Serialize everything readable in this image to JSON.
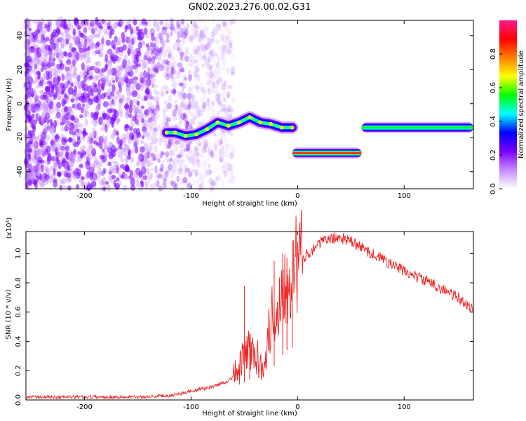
{
  "figure": {
    "title": "GN02.2023.276.00.02.G31"
  },
  "chart_data": [
    {
      "type": "heatmap",
      "xlabel": "Height of straight line (km)",
      "ylabel": "Frequency (Hz)",
      "xlim": [
        -255,
        165
      ],
      "ylim": [
        -50,
        49
      ],
      "xticks": [
        -200,
        -100,
        0,
        100
      ],
      "yticks": [
        -40,
        -20,
        0,
        20,
        40
      ],
      "colorbar": {
        "label": "Normalized spectral amplitude",
        "range": [
          0,
          1
        ],
        "ticks": [
          "0.0",
          "0.2",
          "0.4",
          "0.6",
          "0.8"
        ],
        "colormap": [
          "#ffffff",
          "#c58cff",
          "#7a00ff",
          "#0000ff",
          "#00ffff",
          "#00ff00",
          "#ffff00",
          "#ff8000",
          "#ff0000",
          "#ff1a8c"
        ]
      },
      "noise_region": {
        "x_range": [
          -255,
          -100
        ],
        "y_range": [
          -50,
          49
        ],
        "amplitude": 0.1
      },
      "ridge": [
        {
          "x": -123,
          "y": -17
        },
        {
          "x": -115,
          "y": -17
        },
        {
          "x": -105,
          "y": -19
        },
        {
          "x": -95,
          "y": -18
        },
        {
          "x": -85,
          "y": -15
        },
        {
          "x": -75,
          "y": -11
        },
        {
          "x": -65,
          "y": -13
        },
        {
          "x": -55,
          "y": -11
        },
        {
          "x": -45,
          "y": -8
        },
        {
          "x": -35,
          "y": -11
        },
        {
          "x": -25,
          "y": -12
        },
        {
          "x": -15,
          "y": -14
        },
        {
          "x": -5,
          "y": -14
        }
      ],
      "segments": [
        {
          "x0": -5,
          "x1": 60,
          "y": -29,
          "peak": "red"
        },
        {
          "x0": 60,
          "x1": 165,
          "y": -14,
          "peak": "green"
        }
      ]
    },
    {
      "type": "line",
      "xlabel": "Height of straight line (km)",
      "ylabel": "SNR (10 * v/v)",
      "yscale_label": "(x10⁴)",
      "xlim": [
        -255,
        165
      ],
      "ylim": [
        0,
        1.15
      ],
      "xticks": [
        -200,
        -100,
        0,
        100
      ],
      "yticks": [
        "0.0",
        "0.2",
        "0.4",
        "0.6",
        "0.8",
        "1.0"
      ],
      "color": "#ee2222",
      "envelope": [
        {
          "x": -255,
          "y": 0.02
        },
        {
          "x": -200,
          "y": 0.02
        },
        {
          "x": -150,
          "y": 0.02
        },
        {
          "x": -120,
          "y": 0.03
        },
        {
          "x": -100,
          "y": 0.06
        },
        {
          "x": -80,
          "y": 0.09
        },
        {
          "x": -65,
          "y": 0.13
        },
        {
          "x": -55,
          "y": 0.2
        },
        {
          "x": -50,
          "y": 0.3
        },
        {
          "x": -45,
          "y": 0.35
        },
        {
          "x": -40,
          "y": 0.3
        },
        {
          "x": -35,
          "y": 0.25
        },
        {
          "x": -30,
          "y": 0.3
        },
        {
          "x": -25,
          "y": 0.55
        },
        {
          "x": -20,
          "y": 0.6
        },
        {
          "x": -15,
          "y": 0.75
        },
        {
          "x": -10,
          "y": 0.85
        },
        {
          "x": 0,
          "y": 0.93
        },
        {
          "x": 10,
          "y": 1.0
        },
        {
          "x": 20,
          "y": 1.07
        },
        {
          "x": 30,
          "y": 1.1
        },
        {
          "x": 40,
          "y": 1.11
        },
        {
          "x": 50,
          "y": 1.08
        },
        {
          "x": 70,
          "y": 1.0
        },
        {
          "x": 100,
          "y": 0.88
        },
        {
          "x": 130,
          "y": 0.78
        },
        {
          "x": 150,
          "y": 0.7
        },
        {
          "x": 165,
          "y": 0.62
        }
      ],
      "spikes": [
        {
          "x": -50,
          "y": 0.78
        },
        {
          "x": -45,
          "y": 0.45
        },
        {
          "x": -22,
          "y": 0.95
        },
        {
          "x": -14,
          "y": 1.0
        },
        {
          "x": -10,
          "y": 0.97
        },
        {
          "x": -5,
          "y": 0.95
        }
      ]
    }
  ]
}
